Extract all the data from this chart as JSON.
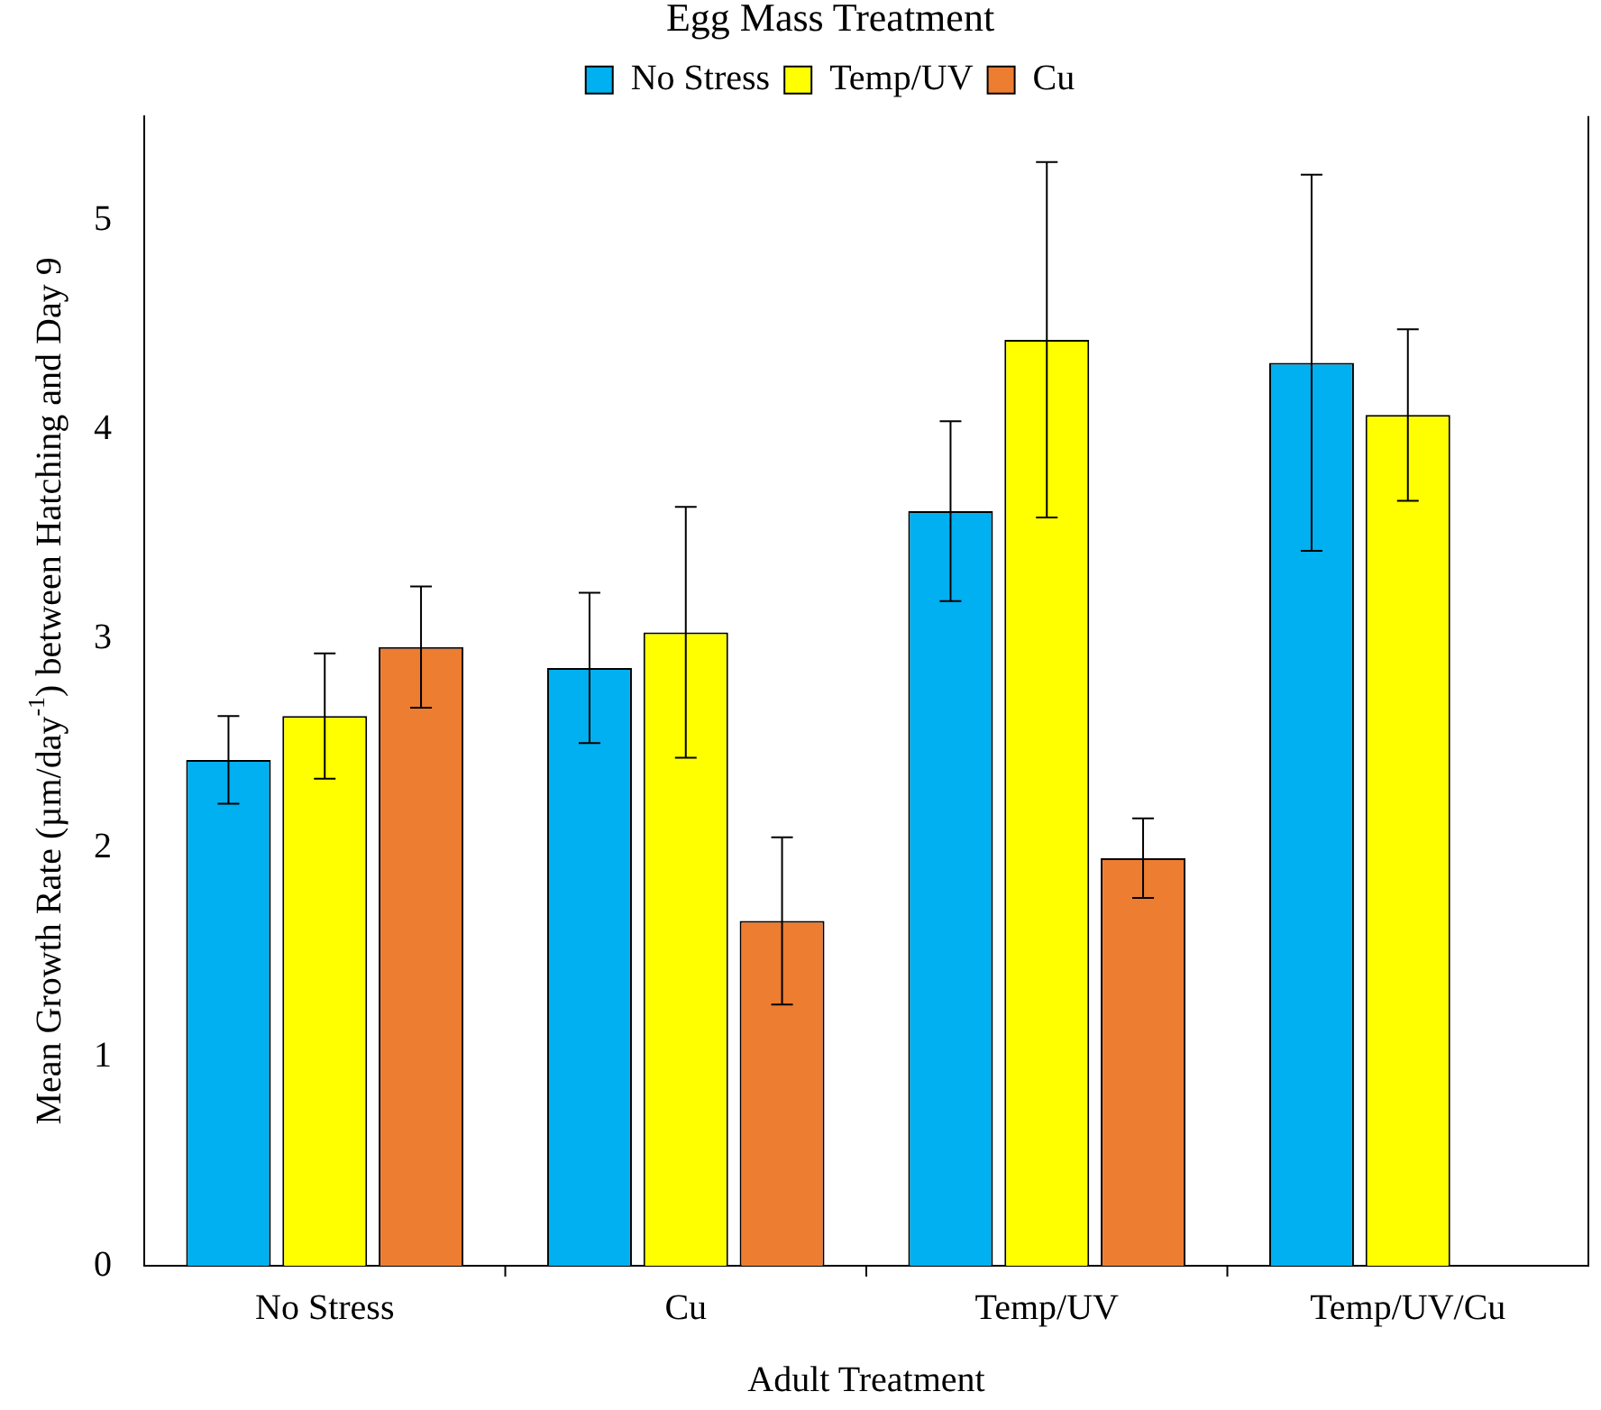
{
  "chart_data": {
    "type": "bar",
    "legend_title": "Egg Mass Treatment",
    "xlabel": "Adult Treatment",
    "ylabel": "Mean Growth Rate (µm/day$^{-1}$) between Hatching and Day 9",
    "categories": [
      "No Stress",
      "Cu",
      "Temp/UV",
      "Temp/UV/Cu"
    ],
    "series": [
      {
        "name": "No Stress",
        "color": "#00b0f0",
        "values": [
          2.42,
          2.86,
          3.61,
          4.32
        ],
        "errors": [
          0.21,
          0.36,
          0.43,
          0.9
        ]
      },
      {
        "name": "Temp/UV",
        "color": "#ffff00",
        "values": [
          2.63,
          3.03,
          4.43,
          4.07
        ],
        "errors": [
          0.3,
          0.6,
          0.85,
          0.41
        ]
      },
      {
        "name": "Cu",
        "color": "#ed7d31",
        "values": [
          2.96,
          1.65,
          1.95,
          null
        ],
        "errors": [
          0.29,
          0.4,
          0.19,
          null
        ]
      }
    ],
    "ylim": [
      0,
      5.5
    ],
    "yticks": [
      0,
      1,
      2,
      3,
      4,
      5
    ],
    "grid": false,
    "legend": "top"
  }
}
